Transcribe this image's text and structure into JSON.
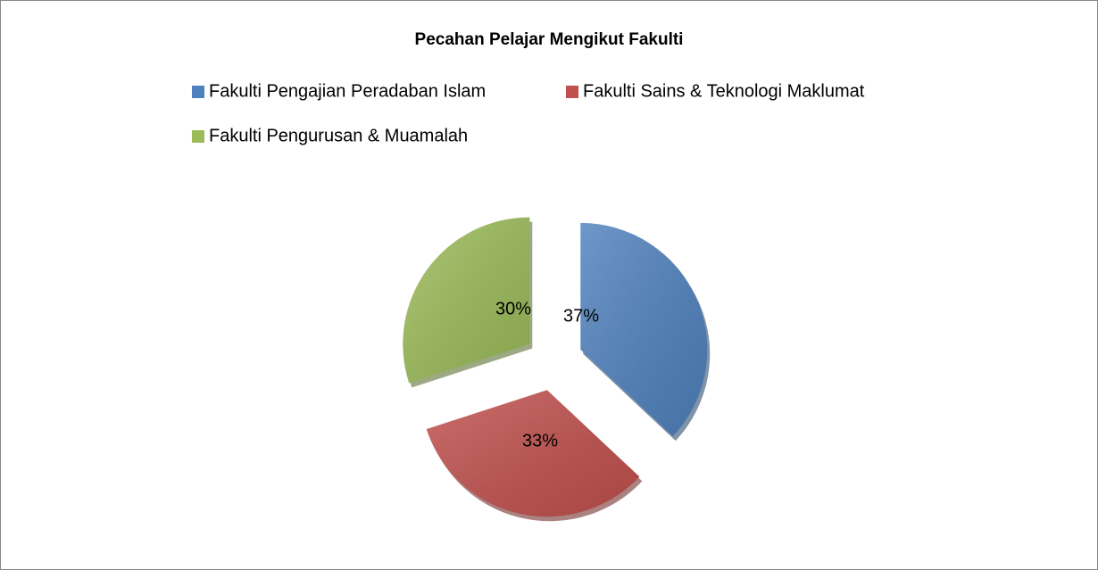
{
  "chart_data": {
    "type": "pie",
    "title": "Pecahan Pelajar Mengikut Fakulti",
    "categories": [
      "Fakulti Pengajian Peradaban Islam",
      "Fakulti Sains & Teknologi Maklumat",
      "Fakulti Pengurusan & Muamalah"
    ],
    "values": [
      37,
      33,
      30
    ],
    "value_labels": [
      "37%",
      "33%",
      "30%"
    ],
    "colors": [
      "#4f81bd",
      "#c0504d",
      "#9bbb59"
    ],
    "legend": "top"
  }
}
